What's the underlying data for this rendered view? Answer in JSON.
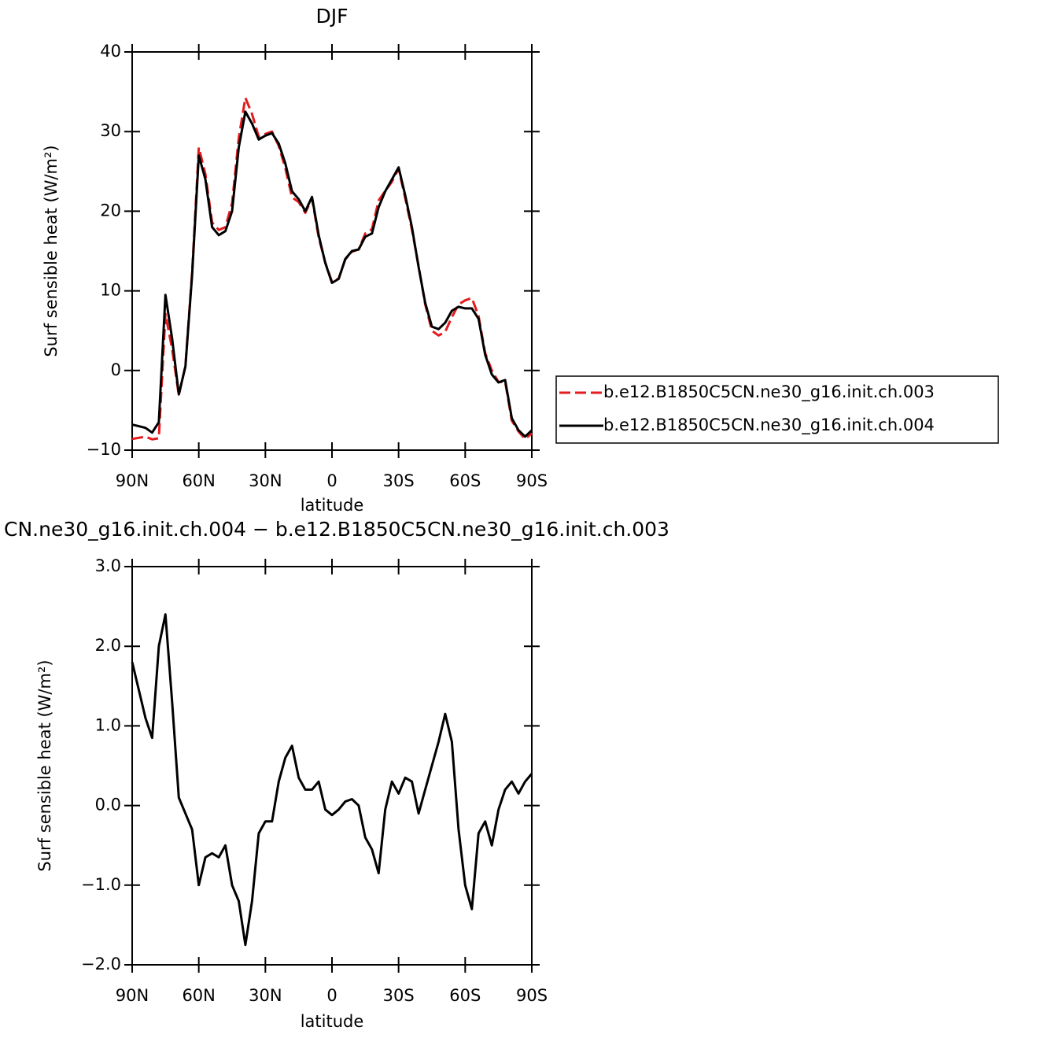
{
  "chart_data": [
    {
      "type": "line",
      "title": "DJF",
      "xlabel": "latitude",
      "ylabel": "Surf sensible heat (W/m²)",
      "x": [
        90,
        87,
        84,
        81,
        78,
        75,
        72,
        69,
        66,
        63,
        60,
        57,
        54,
        51,
        48,
        45,
        42,
        39,
        36,
        33,
        30,
        27,
        24,
        21,
        18,
        15,
        12,
        9,
        6,
        3,
        0,
        -3,
        -6,
        -9,
        -12,
        -15,
        -18,
        -21,
        -24,
        -27,
        -30,
        -33,
        -36,
        -39,
        -42,
        -45,
        -48,
        -51,
        -54,
        -57,
        -60,
        -63,
        -66,
        -69,
        -72,
        -75,
        -78,
        -81,
        -84,
        -87,
        -90
      ],
      "xlim": [
        90,
        -90
      ],
      "xticks": [
        {
          "value": 90,
          "label": "90N"
        },
        {
          "value": 60,
          "label": "60N"
        },
        {
          "value": 30,
          "label": "30N"
        },
        0,
        {
          "value": -30,
          "label": "30S"
        },
        {
          "value": -60,
          "label": "60S"
        },
        {
          "value": -90,
          "label": "90S"
        }
      ],
      "ylim": [
        -10,
        40
      ],
      "yticks": [
        {
          "value": -10,
          "label": "−10"
        },
        0,
        10,
        20,
        30,
        40
      ],
      "series": [
        {
          "name": "b.e12.B1850C5CN.ne30_g16.init.ch.003",
          "color": "#e41a1c",
          "line_style": "dashed",
          "values": [
            -8.6,
            -8.45,
            -8.3,
            -8.65,
            -8.5,
            7.1,
            2.7,
            -3.1,
            0.6,
            12.3,
            28,
            24.65,
            18.6,
            17.65,
            18,
            21,
            29.2,
            34.25,
            32.2,
            29.35,
            29.7,
            30,
            28.2,
            25.4,
            21.75,
            21.15,
            19.8,
            21.6,
            16.7,
            13.55,
            11.12,
            11.55,
            13.95,
            14.92,
            15.2,
            17.2,
            17.75,
            21.35,
            22.55,
            23.7,
            25.35,
            21.65,
            17.7,
            13.1,
            8.3,
            5,
            4.4,
            4.85,
            6.7,
            8.3,
            8.8,
            9.1,
            6.85,
            2.2,
            0,
            -1.45,
            -1.4,
            -6.3,
            -7.65,
            -8.6,
            -7.9
          ]
        },
        {
          "name": "b.e12.B1850C5CN.ne30_g16.init.ch.004",
          "color": "#000000",
          "line_style": "solid",
          "values": [
            -6.8,
            -7.0,
            -7.2,
            -7.8,
            -6.5,
            9.5,
            4,
            -3,
            0.5,
            12,
            27,
            24,
            18,
            17,
            17.5,
            20,
            28,
            32.5,
            31,
            29,
            29.5,
            29.8,
            28.5,
            26,
            22.5,
            21.5,
            20,
            21.8,
            17,
            13.5,
            11,
            11.5,
            14,
            15,
            15.2,
            16.8,
            17.2,
            20.5,
            22.5,
            24,
            25.5,
            22,
            18,
            13,
            8.5,
            5.5,
            5.2,
            6,
            7.5,
            8,
            7.8,
            7.8,
            6.5,
            2,
            -0.5,
            -1.5,
            -1.2,
            -6,
            -7.5,
            -8.3,
            -7.5
          ]
        }
      ]
    },
    {
      "type": "line",
      "title": "CN.ne30_g16.init.ch.004 − b.e12.B1850C5CN.ne30_g16.init.ch.003",
      "xlabel": "latitude",
      "ylabel": "Surf sensible heat (W/m²)",
      "x": [
        90,
        87,
        84,
        81,
        78,
        75,
        72,
        69,
        66,
        63,
        60,
        57,
        54,
        51,
        48,
        45,
        42,
        39,
        36,
        33,
        30,
        27,
        24,
        21,
        18,
        15,
        12,
        9,
        6,
        3,
        0,
        -3,
        -6,
        -9,
        -12,
        -15,
        -18,
        -21,
        -24,
        -27,
        -30,
        -33,
        -36,
        -39,
        -42,
        -45,
        -48,
        -51,
        -54,
        -57,
        -60,
        -63,
        -66,
        -69,
        -72,
        -75,
        -78,
        -81,
        -84,
        -87,
        -90
      ],
      "xlim": [
        90,
        -90
      ],
      "xticks": [
        {
          "value": 90,
          "label": "90N"
        },
        {
          "value": 60,
          "label": "60N"
        },
        {
          "value": 30,
          "label": "30N"
        },
        0,
        {
          "value": -30,
          "label": "30S"
        },
        {
          "value": -60,
          "label": "60S"
        },
        {
          "value": -90,
          "label": "90S"
        }
      ],
      "ylim": [
        -2,
        3
      ],
      "yticks": [
        {
          "value": -2,
          "label": "−2.0"
        },
        {
          "value": -1,
          "label": "−1.0"
        },
        {
          "value": 0,
          "label": "0.0"
        },
        {
          "value": 1,
          "label": "1.0"
        },
        {
          "value": 2,
          "label": "2.0"
        },
        {
          "value": 3,
          "label": "3.0"
        }
      ],
      "series": [
        {
          "color": "#000000",
          "line_style": "solid",
          "values": [
            1.8,
            1.45,
            1.1,
            0.85,
            2.0,
            2.4,
            1.3,
            0.1,
            -0.1,
            -0.3,
            -1.0,
            -0.65,
            -0.6,
            -0.65,
            -0.5,
            -1.0,
            -1.2,
            -1.75,
            -1.2,
            -0.35,
            -0.2,
            -0.2,
            0.3,
            0.6,
            0.75,
            0.35,
            0.2,
            0.2,
            0.3,
            -0.05,
            -0.12,
            -0.05,
            0.05,
            0.08,
            0.0,
            -0.4,
            -0.55,
            -0.85,
            -0.05,
            0.3,
            0.15,
            0.35,
            0.3,
            -0.1,
            0.2,
            0.5,
            0.8,
            1.15,
            0.8,
            -0.3,
            -1.0,
            -1.3,
            -0.35,
            -0.2,
            -0.5,
            -0.05,
            0.2,
            0.3,
            0.15,
            0.3,
            0.4
          ]
        }
      ]
    }
  ]
}
